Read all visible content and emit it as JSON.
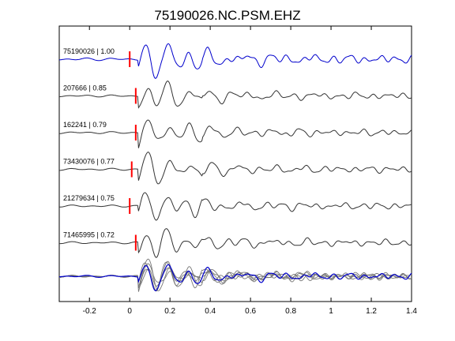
{
  "chart_data": {
    "type": "line",
    "title": "75190026.NC.PSM.EHZ",
    "xlabel": "",
    "ylabel": "",
    "xlim": [
      -0.35,
      1.4
    ],
    "x_ticks": [
      "-0.2",
      "0",
      "0.2",
      "0.4",
      "0.6",
      "0.8",
      "1",
      "1.2",
      "1.4"
    ],
    "x_tick_values": [
      -0.2,
      0,
      0.2,
      0.4,
      0.6,
      0.8,
      1.0,
      1.2,
      1.4
    ],
    "grid": false,
    "series": [
      {
        "name": "75190026 | 1.00",
        "label": "75190026 | 1.00",
        "color": "#0000cc",
        "pick_time": 0.0,
        "shift": 0.0,
        "seed": 1,
        "amp": 1.0
      },
      {
        "name": "207666 | 0.85",
        "label": "207666 | 0.85",
        "color": "#333333",
        "pick_time": 0.03,
        "shift": 0.0,
        "seed": 2,
        "amp": 0.9
      },
      {
        "name": "162241 | 0.79",
        "label": "162241 | 0.79",
        "color": "#333333",
        "pick_time": 0.03,
        "shift": 0.0,
        "seed": 3,
        "amp": 0.9
      },
      {
        "name": "73430076 | 0.77",
        "label": "73430076 | 0.77",
        "color": "#333333",
        "pick_time": 0.01,
        "shift": 0.0,
        "seed": 4,
        "amp": 0.9
      },
      {
        "name": "21279634 | 0.75",
        "label": "21279634 | 0.75",
        "color": "#333333",
        "pick_time": 0.0,
        "shift": 0.0,
        "seed": 5,
        "amp": 0.9
      },
      {
        "name": "71465995 | 0.72",
        "label": "71465995 | 0.72",
        "color": "#333333",
        "pick_time": 0.03,
        "shift": 0.0,
        "seed": 6,
        "amp": 0.9
      }
    ],
    "stack": {
      "colors": [
        "#777777",
        "#0000cc"
      ]
    },
    "pick_color": "#ff0000"
  }
}
